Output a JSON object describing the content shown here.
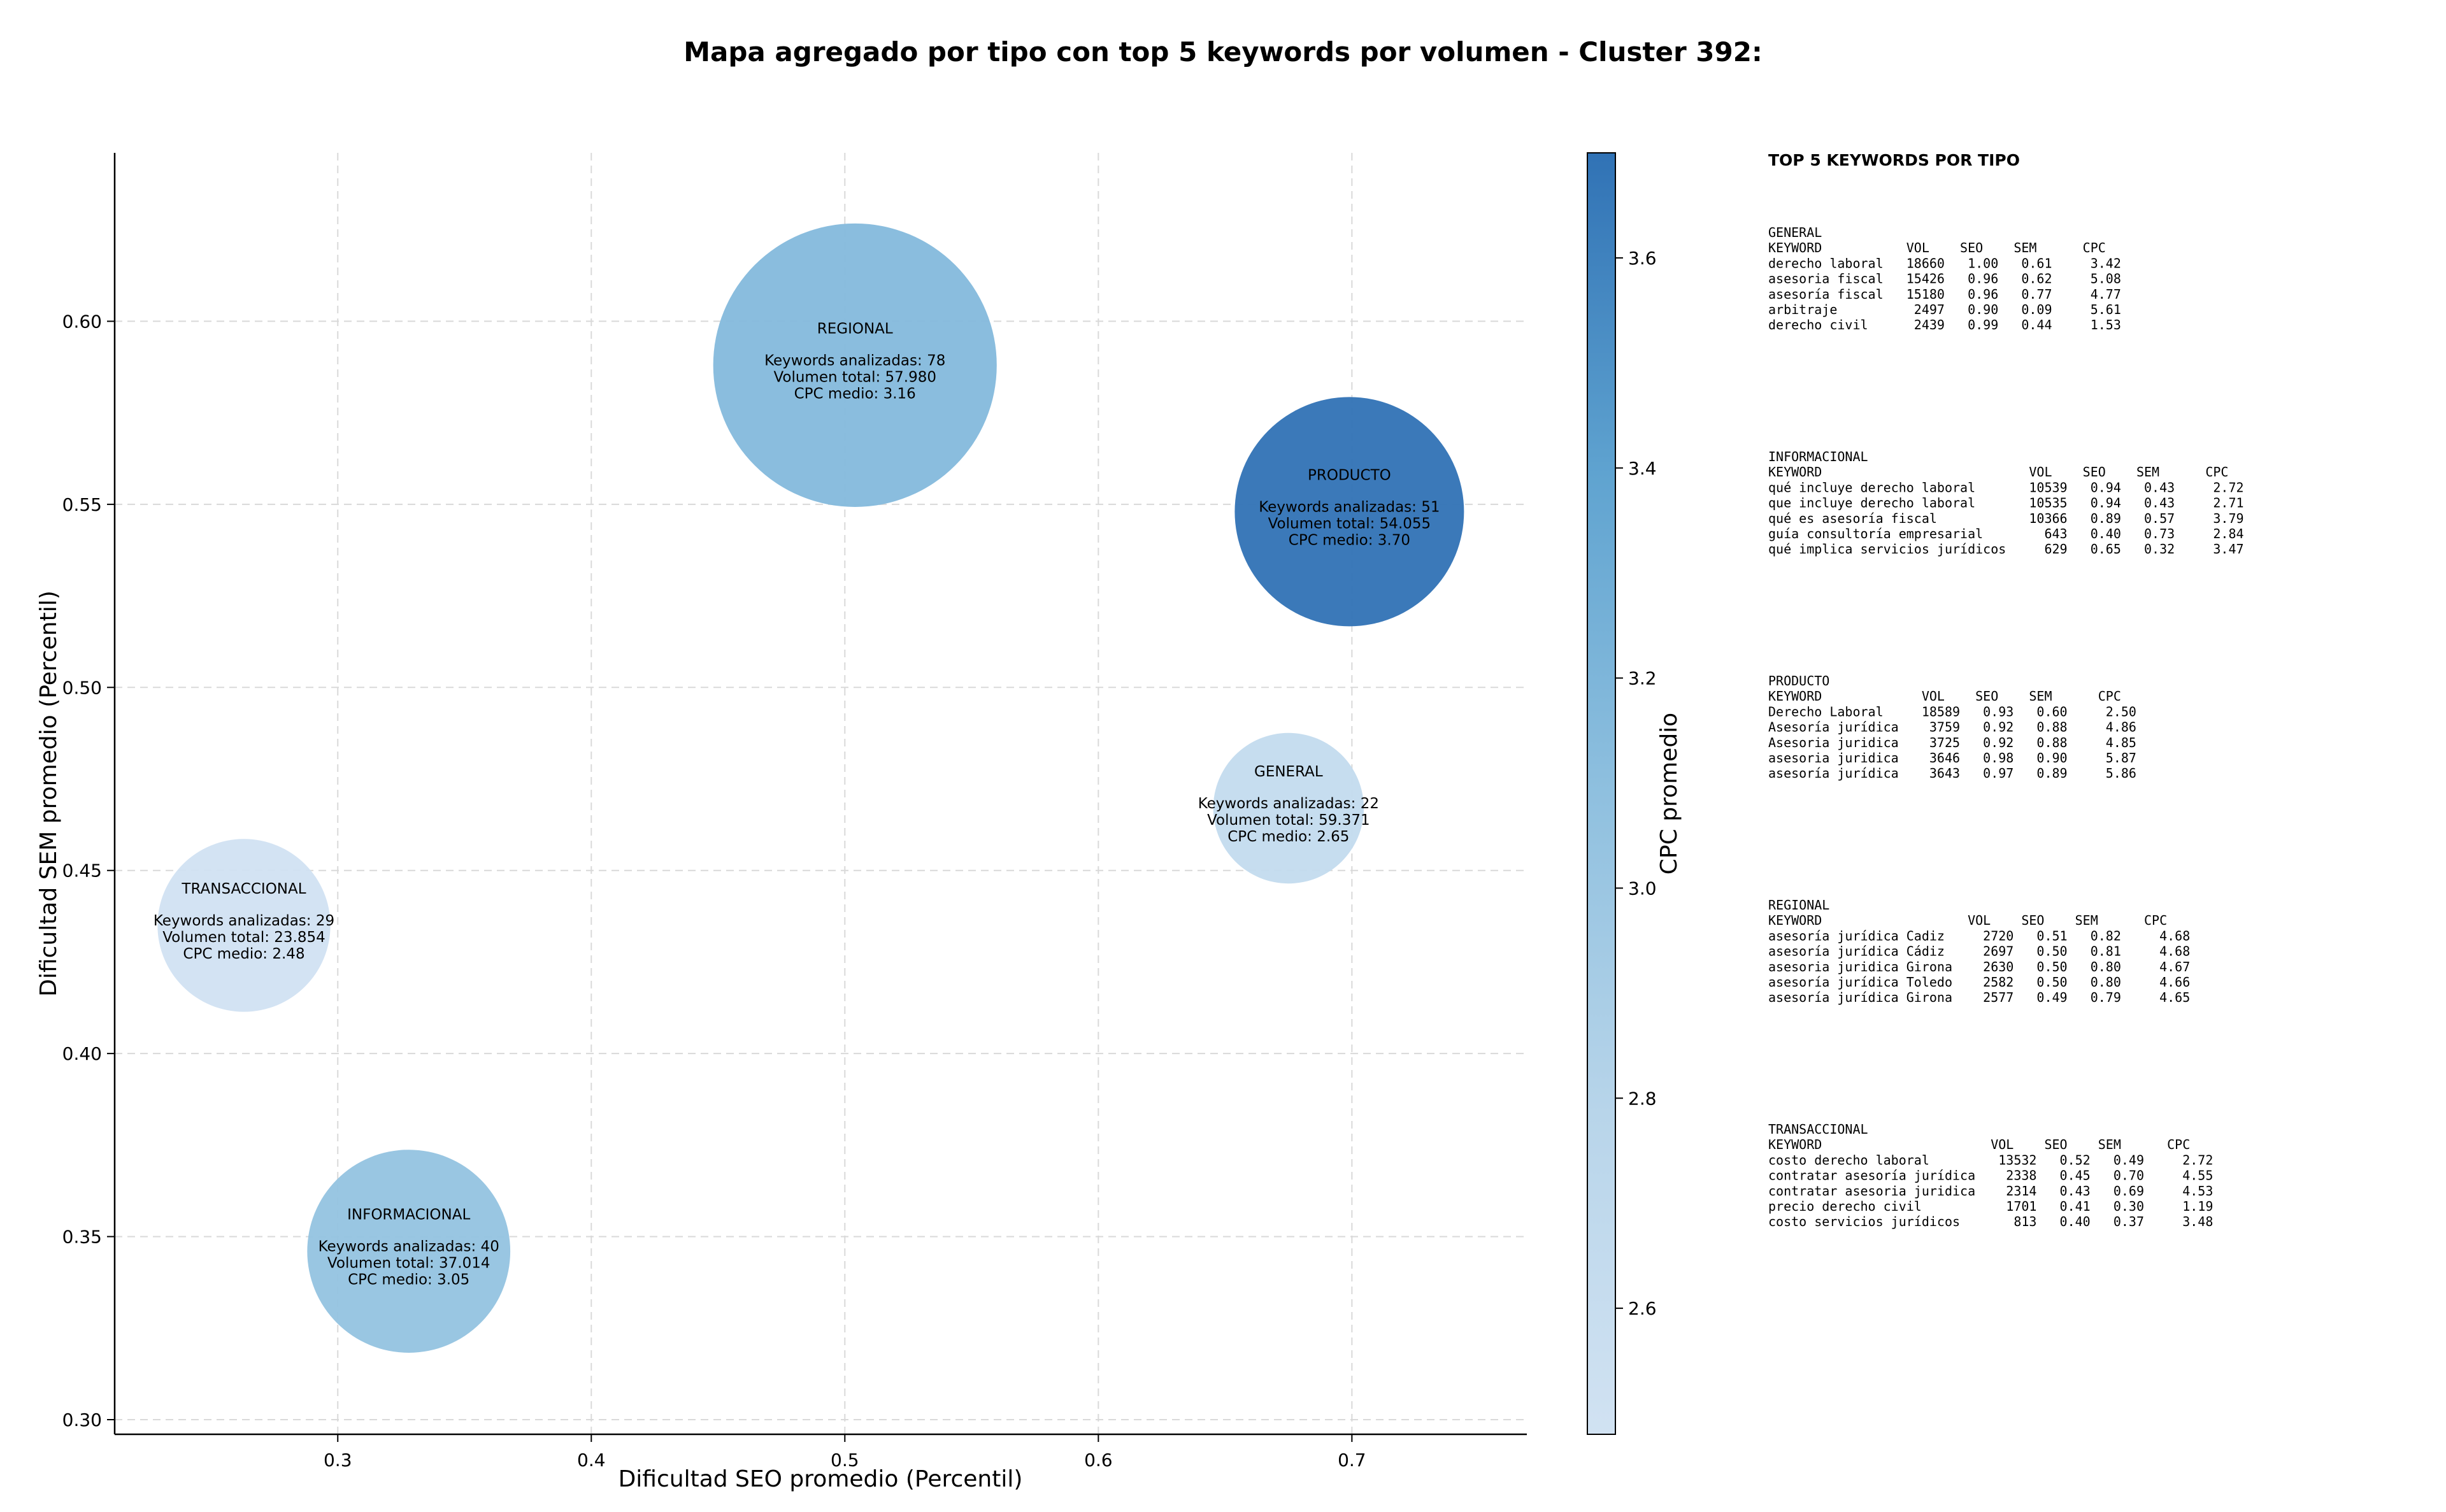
{
  "chart_data": {
    "type": "scatter",
    "title": "Mapa agregado por tipo con top 5 keywords por volumen - Cluster 392:",
    "xlabel": "Dificultad SEO promedio (Percentil)",
    "ylabel": "Dificultad SEM promedio (Percentil)",
    "xlim": [
      0.212,
      0.769
    ],
    "ylim": [
      0.296,
      0.646
    ],
    "xticks": [
      "0.3",
      "0.4",
      "0.5",
      "0.6",
      "0.7"
    ],
    "xtick_values": [
      0.3,
      0.4,
      0.5,
      0.6,
      0.7
    ],
    "yticks": [
      "0.30",
      "0.35",
      "0.40",
      "0.45",
      "0.50",
      "0.55",
      "0.60"
    ],
    "ytick_values": [
      0.3,
      0.35,
      0.4,
      0.45,
      0.5,
      0.55,
      0.6
    ],
    "grid": true,
    "colorbar": {
      "label": "CPC promedio",
      "range": [
        2.48,
        3.7
      ],
      "ticks": [
        "2.6",
        "2.8",
        "3.0",
        "3.2",
        "3.4",
        "3.6"
      ],
      "tick_values": [
        2.6,
        2.8,
        3.0,
        3.2,
        3.4,
        3.6
      ]
    },
    "points": [
      {
        "name": "REGIONAL",
        "x": 0.504,
        "y": 0.588,
        "keywords": 78,
        "volume": 57980,
        "cpc": 3.16,
        "line1": "Keywords analizadas: 78",
        "line2": "Volumen total: 57.980",
        "line3": "CPC medio: 3.16"
      },
      {
        "name": "PRODUCTO",
        "x": 0.699,
        "y": 0.548,
        "keywords": 51,
        "volume": 54055,
        "cpc": 3.7,
        "line1": "Keywords analizadas: 51",
        "line2": "Volumen total: 54.055",
        "line3": "CPC medio: 3.70"
      },
      {
        "name": "GENERAL",
        "x": 0.675,
        "y": 0.467,
        "keywords": 22,
        "volume": 59371,
        "cpc": 2.65,
        "line1": "Keywords analizadas: 22",
        "line2": "Volumen total: 59.371",
        "line3": "CPC medio: 2.65"
      },
      {
        "name": "TRANSACCIONAL",
        "x": 0.263,
        "y": 0.435,
        "keywords": 29,
        "volume": 23854,
        "cpc": 2.48,
        "line1": "Keywords analizadas: 29",
        "line2": "Volumen total: 23.854",
        "line3": "CPC medio: 2.48"
      },
      {
        "name": "INFORMACIONAL",
        "x": 0.328,
        "y": 0.346,
        "keywords": 40,
        "volume": 37014,
        "cpc": 3.05,
        "line1": "Keywords analizadas: 40",
        "line2": "Volumen total: 37.014",
        "line3": "CPC medio: 3.05"
      }
    ]
  },
  "side_panel": {
    "heading": "TOP 5 KEYWORDS POR TIPO",
    "sections": [
      {
        "name": "GENERAL",
        "header": "KEYWORD           VOL    SEO    SEM      CPC",
        "rows": [
          "derecho laboral   18660   1.00   0.61     3.42",
          "asesoria fiscal   15426   0.96   0.62     5.08",
          "asesoría fiscal   15180   0.96   0.77     4.77",
          "arbitraje          2497   0.90   0.09     5.61",
          "derecho civil      2439   0.99   0.44     1.53"
        ]
      },
      {
        "name": "INFORMACIONAL",
        "header": "KEYWORD                           VOL    SEO    SEM      CPC",
        "rows": [
          "qué incluye derecho laboral       10539   0.94   0.43     2.72",
          "que incluye derecho laboral       10535   0.94   0.43     2.71",
          "qué es asesoría fiscal            10366   0.89   0.57     3.79",
          "guía consultoría empresarial        643   0.40   0.73     2.84",
          "qué implica servicios jurídicos     629   0.65   0.32     3.47"
        ]
      },
      {
        "name": "PRODUCTO",
        "header": "KEYWORD             VOL    SEO    SEM      CPC",
        "rows": [
          "Derecho Laboral     18589   0.93   0.60     2.50",
          "Asesoría jurídica    3759   0.92   0.88     4.86",
          "Asesoria juridica    3725   0.92   0.88     4.85",
          "asesoria juridica    3646   0.98   0.90     5.87",
          "asesoría jurídica    3643   0.97   0.89     5.86"
        ]
      },
      {
        "name": "REGIONAL",
        "header": "KEYWORD                   VOL    SEO    SEM      CPC",
        "rows": [
          "asesoría jurídica Cadiz     2720   0.51   0.82     4.68",
          "asesoría jurídica Cádiz     2697   0.50   0.81     4.68",
          "asesoria juridica Girona    2630   0.50   0.80     4.67",
          "asesoría jurídica Toledo    2582   0.50   0.80     4.66",
          "asesoría jurídica Girona    2577   0.49   0.79     4.65"
        ]
      },
      {
        "name": "TRANSACCIONAL",
        "header": "KEYWORD                      VOL    SEO    SEM      CPC",
        "rows": [
          "costo derecho laboral         13532   0.52   0.49     2.72",
          "contratar asesoría jurídica    2338   0.45   0.70     4.55",
          "contratar asesoria juridica    2314   0.43   0.69     4.53",
          "precio derecho civil           1701   0.41   0.30     1.19",
          "costo servicios jurídicos       813   0.40   0.37     3.48"
        ]
      }
    ]
  }
}
